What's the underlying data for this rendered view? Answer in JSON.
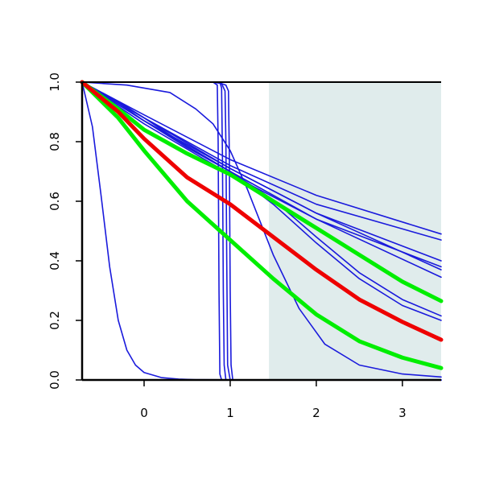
{
  "chart_data": {
    "type": "line",
    "title": "",
    "xlabel": "",
    "ylabel": "",
    "xlim": [
      -0.72,
      3.45
    ],
    "ylim": [
      0,
      1
    ],
    "x_ticks": [
      0,
      1,
      2,
      3
    ],
    "x_tick_labels": [
      "0",
      "1",
      "2",
      "3"
    ],
    "y_ticks": [
      0,
      0.2,
      0.4,
      0.6,
      0.8,
      1
    ],
    "y_tick_labels": [
      "0.0",
      "0.2",
      "0.4",
      "0.6",
      "0.8",
      "1.0"
    ],
    "grid": false,
    "legend": "none",
    "shaded_region": {
      "x": [
        1.45,
        3.45
      ],
      "color": "#e0ecec"
    },
    "colors": {
      "thin": "#1a1adc",
      "green": "#00ee00",
      "red": "#ee0000",
      "shade": "#e0ecec",
      "axis": "#000000"
    },
    "series": [
      {
        "color": "thin",
        "width": "thin",
        "x": [
          -0.72,
          -0.6,
          -0.5,
          -0.4,
          -0.3,
          -0.2,
          -0.1,
          0,
          0.2,
          0.4,
          0.6,
          0.9,
          1.2,
          2,
          3.45
        ],
        "y": [
          1,
          0.85,
          0.62,
          0.38,
          0.2,
          0.1,
          0.05,
          0.025,
          0.008,
          0.003,
          0.001,
          0.0005,
          0.0002,
          0,
          0
        ]
      },
      {
        "color": "thin",
        "width": "thin",
        "x": [
          -0.72,
          0.7,
          0.8,
          0.85,
          0.86,
          0.87,
          0.88,
          0.9,
          1.0,
          3.45
        ],
        "y": [
          1,
          1,
          1,
          0.99,
          0.8,
          0.3,
          0.02,
          0,
          0,
          0
        ]
      },
      {
        "color": "thin",
        "width": "thin",
        "x": [
          -0.72,
          0.8,
          0.88,
          0.9,
          0.91,
          0.92,
          0.93,
          0.95,
          1.05,
          3.45
        ],
        "y": [
          1,
          1,
          1,
          0.98,
          0.75,
          0.3,
          0.05,
          0,
          0,
          0
        ]
      },
      {
        "color": "thin",
        "width": "thin",
        "x": [
          -0.72,
          0.8,
          0.9,
          0.94,
          0.95,
          0.96,
          0.97,
          1.0,
          1.1,
          3.45
        ],
        "y": [
          1,
          1,
          0.995,
          0.97,
          0.8,
          0.4,
          0.05,
          0,
          0,
          0
        ]
      },
      {
        "color": "thin",
        "width": "thin",
        "x": [
          -0.72,
          0.85,
          0.95,
          0.98,
          0.99,
          1.0,
          1.01,
          1.03,
          1.15,
          3.45
        ],
        "y": [
          1,
          1,
          0.99,
          0.97,
          0.75,
          0.3,
          0.05,
          0,
          0,
          0
        ]
      },
      {
        "color": "thin",
        "width": "thin",
        "x": [
          -0.72,
          -0.2,
          0.3,
          0.6,
          0.8,
          1.0,
          1.2,
          1.5,
          1.8,
          2.1,
          2.5,
          3.0,
          3.45
        ],
        "y": [
          1,
          0.99,
          0.965,
          0.91,
          0.86,
          0.77,
          0.64,
          0.42,
          0.24,
          0.12,
          0.05,
          0.02,
          0.01
        ]
      },
      {
        "color": "thin",
        "width": "thin",
        "x": [
          -0.72,
          0.0,
          1.0,
          2.0,
          3.45
        ],
        "y": [
          1,
          0.88,
          0.72,
          0.59,
          0.47
        ]
      },
      {
        "color": "thin",
        "width": "thin",
        "x": [
          -0.72,
          0.0,
          1.0,
          2.0,
          3.45
        ],
        "y": [
          1,
          0.89,
          0.74,
          0.62,
          0.49
        ]
      },
      {
        "color": "thin",
        "width": "thin",
        "x": [
          -0.72,
          0.0,
          1.0,
          2.0,
          3.45
        ],
        "y": [
          1,
          0.87,
          0.71,
          0.56,
          0.4
        ]
      },
      {
        "color": "thin",
        "width": "thin",
        "x": [
          -0.72,
          0.0,
          1.0,
          2.0,
          3.45
        ],
        "y": [
          1,
          0.86,
          0.69,
          0.54,
          0.38
        ]
      },
      {
        "color": "thin",
        "width": "thin",
        "x": [
          -0.72,
          0.0,
          1.0,
          2.0,
          3.45
        ],
        "y": [
          1,
          0.88,
          0.71,
          0.56,
          0.37
        ]
      },
      {
        "color": "thin",
        "width": "thin",
        "x": [
          -0.72,
          0.0,
          1.0,
          2.0,
          3.45
        ],
        "y": [
          1,
          0.87,
          0.7,
          0.54,
          0.345
        ]
      },
      {
        "color": "thin",
        "width": "thin",
        "x": [
          -0.72,
          -0.3,
          0.0,
          0.5,
          1.0,
          1.5,
          2.0,
          2.5,
          3.0,
          3.45
        ],
        "y": [
          1,
          0.93,
          0.87,
          0.78,
          0.7,
          0.59,
          0.46,
          0.34,
          0.25,
          0.2
        ]
      },
      {
        "color": "thin",
        "width": "thin",
        "x": [
          -0.72,
          -0.3,
          0.0,
          0.5,
          1.0,
          1.5,
          2.0,
          2.5,
          3.0,
          3.45
        ],
        "y": [
          1,
          0.935,
          0.88,
          0.785,
          0.7,
          0.605,
          0.48,
          0.36,
          0.27,
          0.215
        ]
      },
      {
        "color": "green",
        "width": "thick",
        "x": [
          -0.72,
          -0.3,
          0.0,
          0.5,
          1.0,
          1.5,
          2.0,
          2.5,
          3.0,
          3.45
        ],
        "y": [
          1,
          0.91,
          0.84,
          0.76,
          0.69,
          0.6,
          0.51,
          0.42,
          0.33,
          0.265
        ]
      },
      {
        "color": "green",
        "width": "thick",
        "x": [
          -0.72,
          -0.3,
          0.0,
          0.5,
          1.0,
          1.5,
          2.0,
          2.5,
          3.0,
          3.45
        ],
        "y": [
          1,
          0.88,
          0.77,
          0.6,
          0.47,
          0.34,
          0.22,
          0.13,
          0.075,
          0.04
        ]
      },
      {
        "color": "red",
        "width": "thick",
        "x": [
          -0.72,
          -0.3,
          0.0,
          0.5,
          1.0,
          1.5,
          2.0,
          2.5,
          3.0,
          3.45
        ],
        "y": [
          1,
          0.9,
          0.81,
          0.68,
          0.59,
          0.48,
          0.37,
          0.27,
          0.195,
          0.135
        ]
      }
    ]
  }
}
